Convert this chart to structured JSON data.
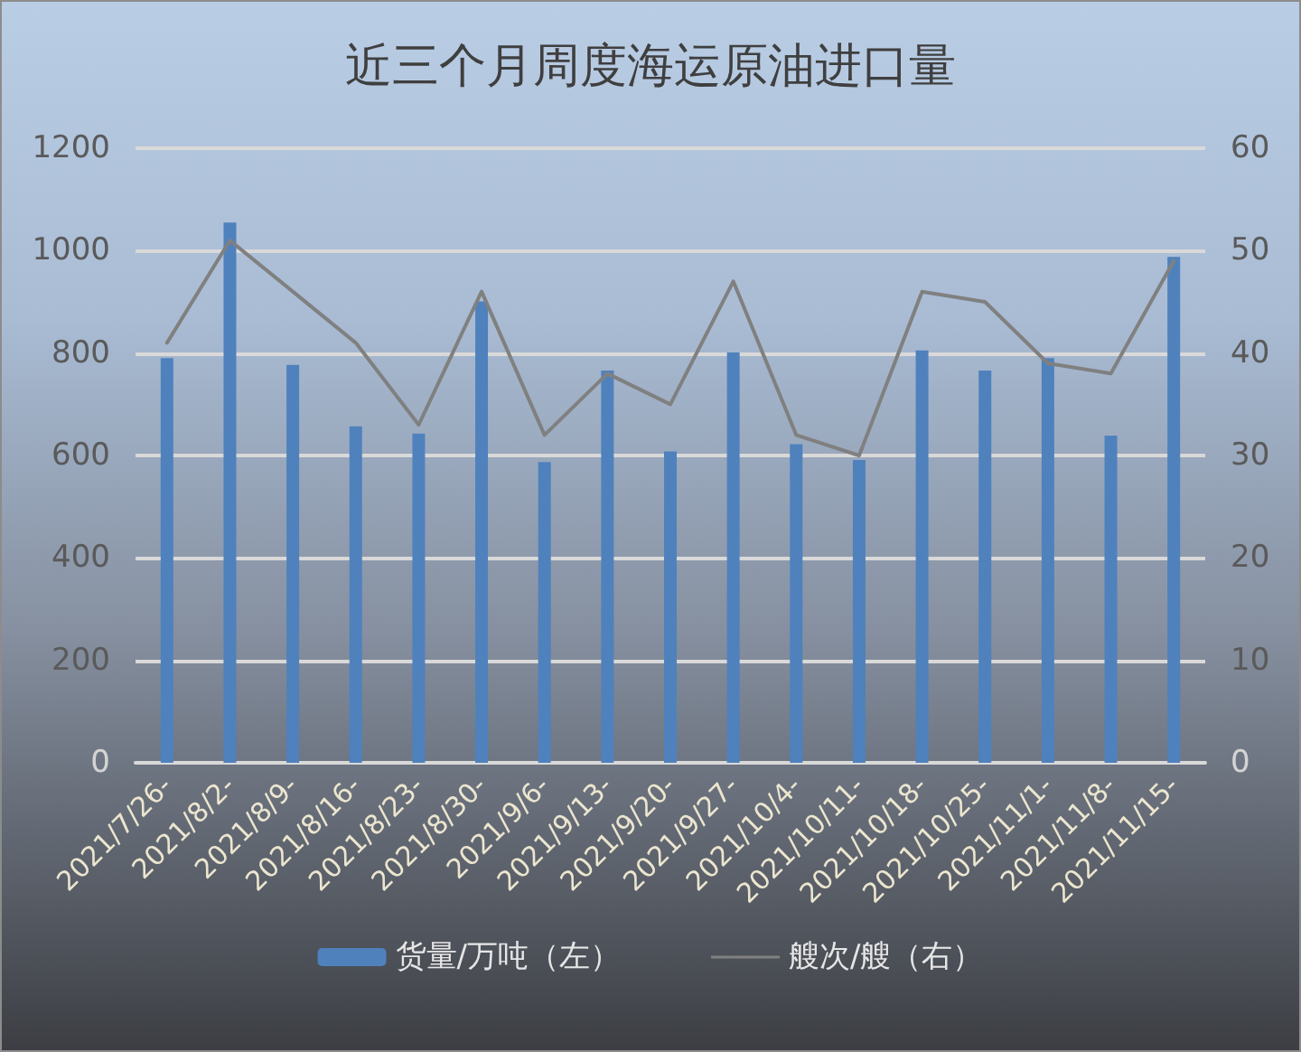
{
  "chart_data": {
    "type": "bar",
    "title": "近三个月周度海运原油进口量",
    "categories": [
      "2021/7/26-",
      "2021/8/2-",
      "2021/8/9-",
      "2021/8/16-",
      "2021/8/23-",
      "2021/8/30-",
      "2021/9/6-",
      "2021/9/13-",
      "2021/9/20-",
      "2021/9/27-",
      "2021/10/4-",
      "2021/10/11-",
      "2021/10/18-",
      "2021/10/25-",
      "2021/11/1-",
      "2021/11/8-",
      "2021/11/15-"
    ],
    "series": [
      {
        "name": "货量/万吨（左）",
        "color": "#4f81bd",
        "values": [
          790,
          1055,
          777,
          657,
          643,
          901,
          587,
          766,
          608,
          801,
          622,
          591,
          805,
          766,
          790,
          639,
          988
        ]
      },
      {
        "name": "艘次/艘（右）",
        "type": "line",
        "axis": "y2",
        "color": "#808080",
        "values": [
          41,
          51,
          46,
          41,
          33,
          46,
          32,
          38,
          35,
          47,
          32,
          30,
          46,
          45,
          39,
          38,
          49
        ]
      }
    ],
    "ylim": [
      0,
      1200
    ],
    "yticks": [
      0,
      200,
      400,
      600,
      800,
      1000,
      1200
    ],
    "y2lim": [
      0,
      60
    ],
    "y2ticks": [
      0,
      10,
      20,
      30,
      40,
      50,
      60
    ],
    "grid": "y",
    "legend": "bottom",
    "marker": "none",
    "line_style": "solid"
  }
}
